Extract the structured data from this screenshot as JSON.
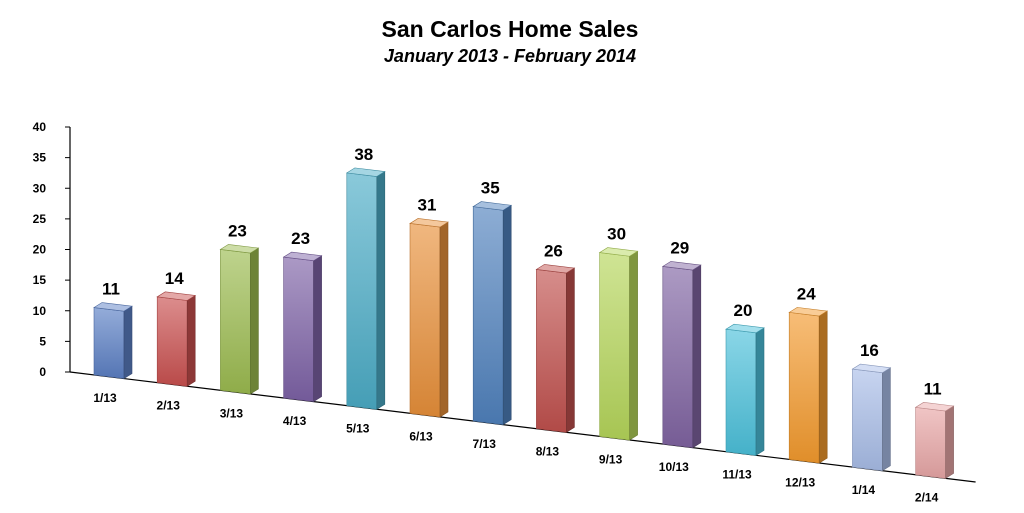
{
  "chart_data": {
    "type": "bar",
    "title": "San Carlos Home Sales",
    "subtitle": "January 2013 -  February 2014",
    "categories": [
      "1/13",
      "2/13",
      "3/13",
      "4/13",
      "5/13",
      "6/13",
      "7/13",
      "8/13",
      "9/13",
      "10/13",
      "11/13",
      "12/13",
      "1/14",
      "2/14"
    ],
    "values": [
      11,
      14,
      23,
      23,
      38,
      31,
      35,
      26,
      30,
      29,
      20,
      24,
      16,
      11
    ],
    "ylim": [
      0,
      40
    ],
    "yticks": [
      "0",
      "5",
      "10",
      "15",
      "20",
      "25",
      "30",
      "35",
      "40"
    ],
    "grid": false,
    "legend": "none",
    "bar_colors": [
      "#5b7fc4",
      "#c9504f",
      "#9bbb4f",
      "#7d62a6",
      "#4bacc6",
      "#e8903a",
      "#4f81bd",
      "#c0504d",
      "#b5d65a",
      "#8064a2",
      "#4bc0da",
      "#f39a2e",
      "#a9bde8",
      "#e8a6a6"
    ]
  }
}
